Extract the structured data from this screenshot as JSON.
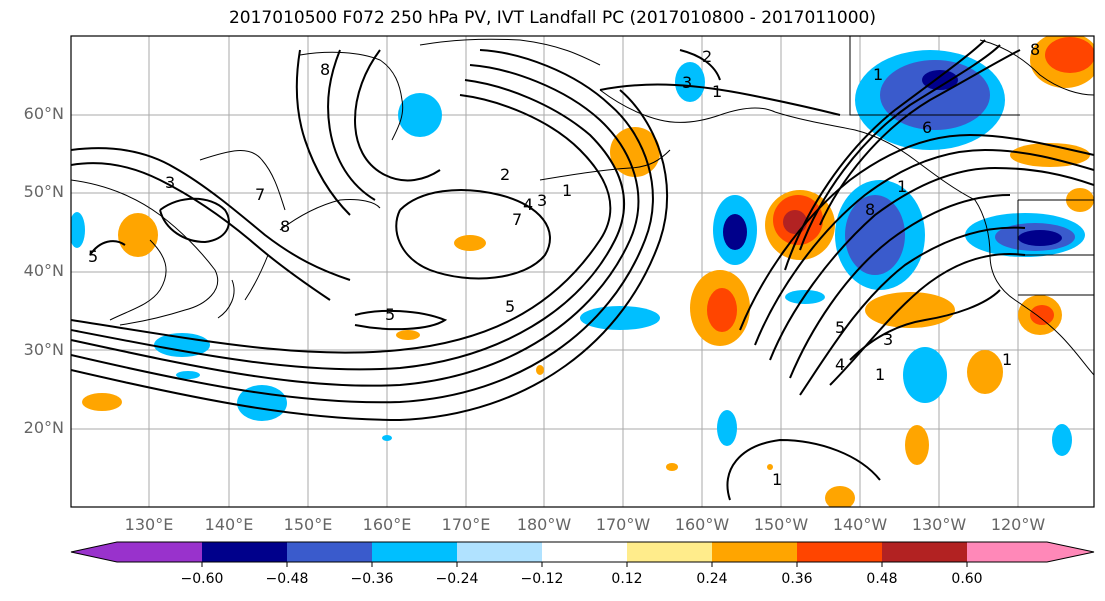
{
  "title": "2017010500 F072 250 hPa PV, IVT Landfall PC (2017010800 - 2017011000)",
  "map": {
    "lat_labels": [
      "60°N",
      "50°N",
      "40°N",
      "30°N",
      "20°N"
    ],
    "lon_labels": [
      "130°E",
      "140°E",
      "150°E",
      "160°E",
      "170°E",
      "180°W",
      "170°W",
      "160°W",
      "150°W",
      "140°W",
      "130°W",
      "120°W"
    ],
    "contour_labels": [
      "8",
      "3",
      "7",
      "8",
      "5",
      "5",
      "5",
      "7",
      "4",
      "3",
      "2",
      "1",
      "2",
      "3",
      "1",
      "1",
      "8",
      "6",
      "8",
      "1",
      "5",
      "4",
      "3",
      "1",
      "1",
      "1"
    ]
  },
  "colorbar": {
    "ticks": [
      "−0.60",
      "−0.48",
      "−0.36",
      "−0.24",
      "−0.12",
      "0.12",
      "0.24",
      "0.36",
      "0.48",
      "0.60"
    ],
    "colors": [
      "#9932cc",
      "#00008b",
      "#3a5bcc",
      "#00bfff",
      "#b0e2ff",
      "#ffffff",
      "#ffec8b",
      "#ffa500",
      "#ff4500",
      "#b22222",
      "#ff88b8"
    ]
  }
}
